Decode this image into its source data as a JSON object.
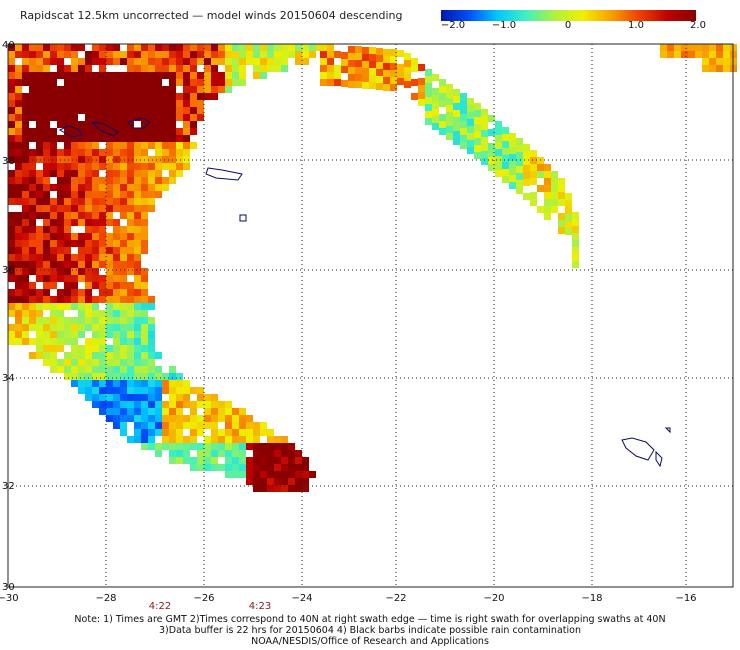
{
  "title": "Rapidscat 12.5km uncorrected — model winds 20150604 descending",
  "colorbar": {
    "labels": [
      "−2.0",
      "−1.0",
      "0",
      "1.0",
      "2.0"
    ]
  },
  "axes": {
    "x_ticks": [
      "−30",
      "−28",
      "−26",
      "−24",
      "−22",
      "−20",
      "−18",
      "−16"
    ],
    "y_ticks": [
      "40",
      "38",
      "36",
      "34",
      "32",
      "30"
    ]
  },
  "times": [
    "4:22",
    "4:23"
  ],
  "notes": [
    "Note: 1) Times are GMT 2)Times correspond to 40N at right swath edge — time is right swath for overlapping swaths at 40N",
    "3)Data buffer is 22 hrs for 20150604 4) Black barbs indicate possible rain contamination",
    "NOAA/NESDIS/Office of Research and Applications"
  ],
  "colors": {
    "grid": "#222222",
    "coast": "#0a0a6a",
    "time_label": "#8a1a1a"
  }
}
